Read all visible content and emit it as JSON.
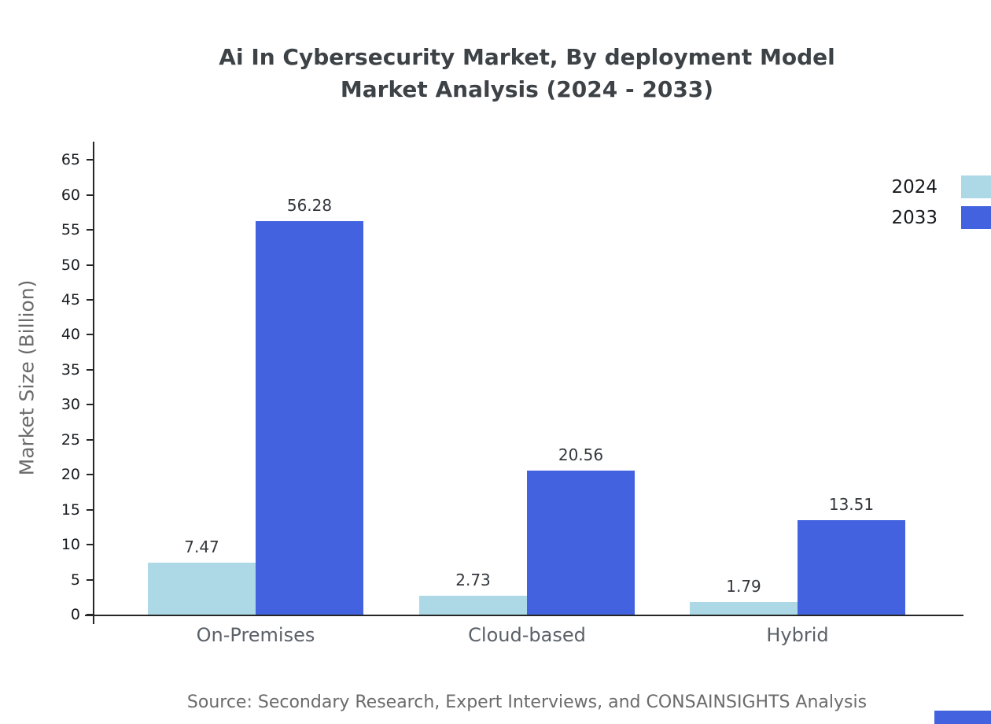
{
  "page": {
    "title_line1": "Ai In Cybersecurity Market, By deployment Model",
    "title_line2": "Market Analysis (2024 - 2033)",
    "source": "Source: Secondary Research, Expert Interviews, and CONSAINSIGHTS Analysis"
  },
  "chart_data": {
    "type": "bar",
    "title": "Ai In Cybersecurity Market, By deployment Model Market Analysis (2024 - 2033)",
    "categories": [
      "On-Premises",
      "Cloud-based",
      "Hybrid"
    ],
    "series": [
      {
        "name": "2024",
        "color": "#ADD8E6",
        "values": [
          7.47,
          2.73,
          1.79
        ]
      },
      {
        "name": "2033",
        "color": "#4262E0",
        "values": [
          56.28,
          20.56,
          13.51
        ]
      }
    ],
    "xlabel": "",
    "ylabel": "Market Size (Billion)",
    "ylim": [
      0,
      65
    ],
    "ytick_step": 5,
    "grid": false,
    "legend_position": "top-right",
    "value_label_format": "2-decimals",
    "accent_colors": {
      "axis": "#262626",
      "text_dark": "#17191c",
      "text_gray": "#6b6b6b"
    }
  }
}
